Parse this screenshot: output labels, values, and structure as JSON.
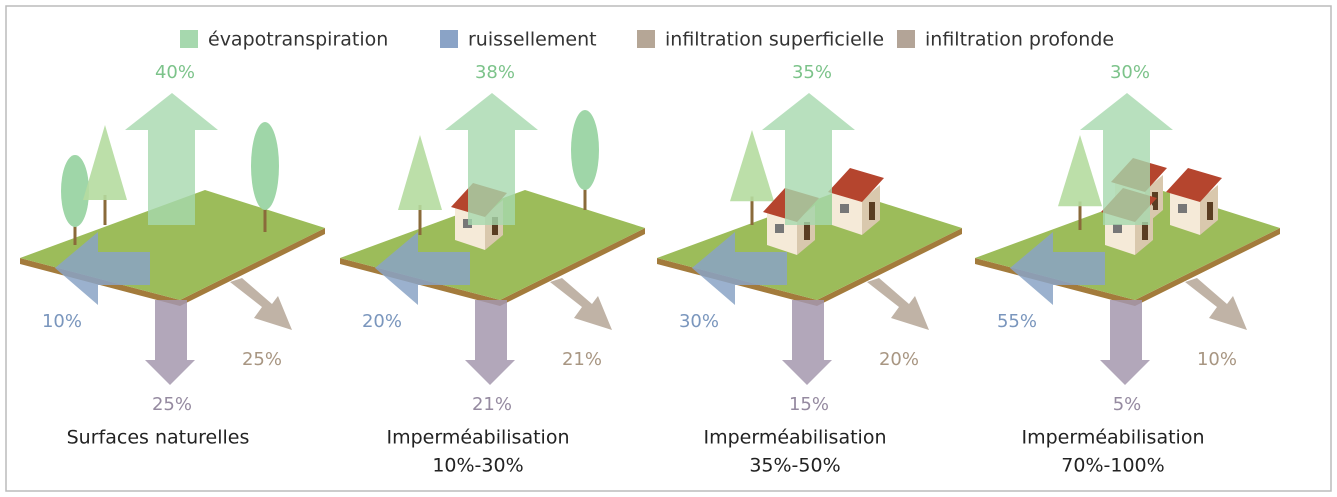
{
  "legend": [
    {
      "label": "évapotranspiration",
      "color": "#a6d8ae"
    },
    {
      "label": "ruissellement",
      "color": "#8aa3c6"
    },
    {
      "label": "infiltration superficielle",
      "color": "#b5a696"
    },
    {
      "label": "infiltration profonde",
      "color": "#b3a497"
    }
  ],
  "panels": [
    {
      "title": [
        "Surfaces naturelles"
      ],
      "evapotranspiration": "40%",
      "ruissellement": "10%",
      "infiltration_superficielle": "25%",
      "infiltration_profonde": "25%"
    },
    {
      "title": [
        "Imperméabilisation",
        "10%-30%"
      ],
      "evapotranspiration": "38%",
      "ruissellement": "20%",
      "infiltration_superficielle": "21%",
      "infiltration_profonde": "21%"
    },
    {
      "title": [
        "Imperméabilisation",
        "35%-50%"
      ],
      "evapotranspiration": "35%",
      "ruissellement": "30%",
      "infiltration_superficielle": "20%",
      "infiltration_profonde": "15%"
    },
    {
      "title": [
        "Imperméabilisation",
        "70%-100%"
      ],
      "evapotranspiration": "30%",
      "ruissellement": "55%",
      "infiltration_superficielle": "10%",
      "infiltration_profonde": "5%"
    }
  ]
}
